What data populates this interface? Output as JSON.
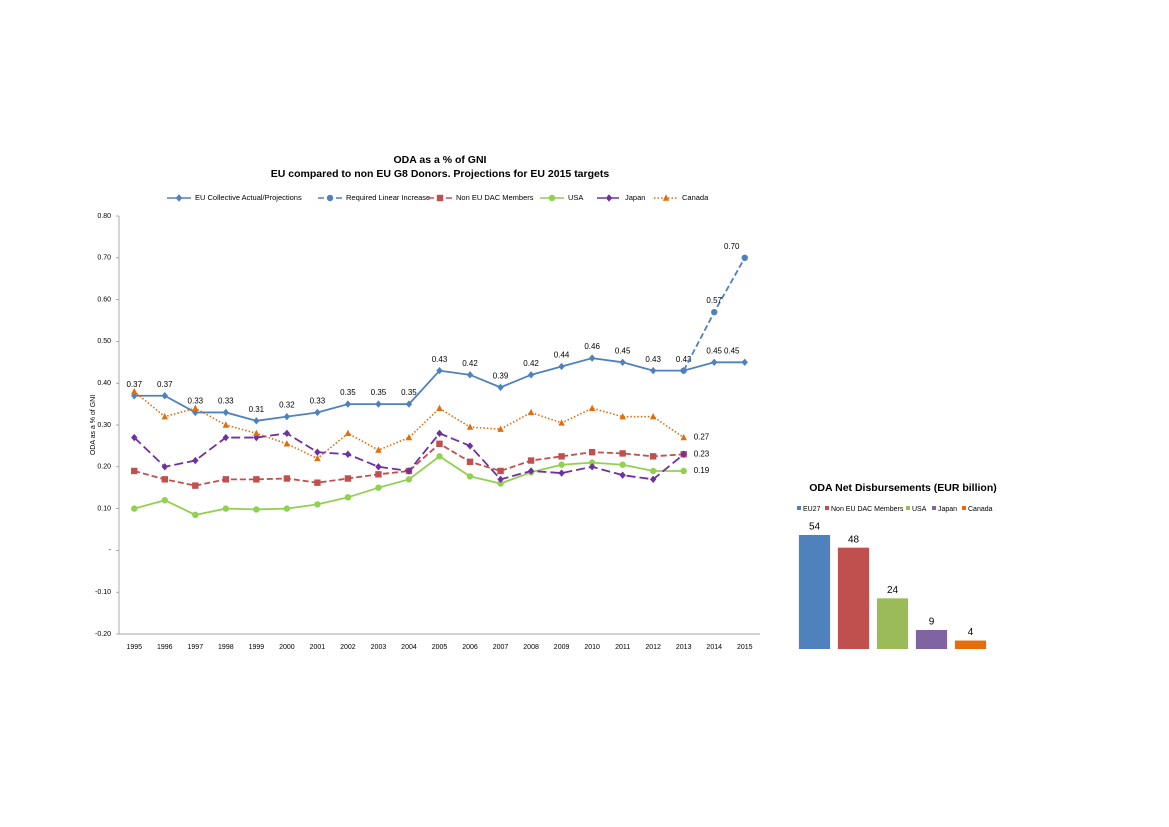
{
  "chart_data": [
    {
      "type": "line",
      "title": "ODA as a % of GNI",
      "subtitle": "EU compared to non EU G8 Donors.  Projections for EU 2015 targets",
      "y_label": "ODA as a % of GNI",
      "categories": [
        "1995",
        "1996",
        "1997",
        "1998",
        "1999",
        "2000",
        "2001",
        "2002",
        "2003",
        "2004",
        "2005",
        "2006",
        "2007",
        "2008",
        "2009",
        "2010",
        "2011",
        "2012",
        "2013",
        "2014",
        "2015"
      ],
      "ylim": [
        -0.2,
        0.8
      ],
      "yticks": [
        {
          "value": -0.2,
          "label": "-0.20"
        },
        {
          "value": -0.1,
          "label": "-0.10"
        },
        {
          "value": 0,
          "label": "-"
        },
        {
          "value": 0.1,
          "label": "0.10"
        },
        {
          "value": 0.2,
          "label": "0.20"
        },
        {
          "value": 0.3,
          "label": "0.30"
        },
        {
          "value": 0.4,
          "label": "0.40"
        },
        {
          "value": 0.5,
          "label": "0.50"
        },
        {
          "value": 0.6,
          "label": "0.60"
        },
        {
          "value": 0.7,
          "label": "0.70"
        },
        {
          "value": 0.8,
          "label": "0.80"
        }
      ],
      "legend": "top",
      "series": [
        {
          "name": "EU Collective Actual/Projections",
          "color": "#4f81bd",
          "marker": "diamond",
          "dash": "solid",
          "values": [
            0.37,
            0.37,
            0.33,
            0.33,
            0.31,
            0.32,
            0.33,
            0.35,
            0.35,
            0.35,
            0.43,
            0.42,
            0.39,
            0.42,
            0.44,
            0.46,
            0.45,
            0.43,
            0.43,
            0.45,
            0.45
          ],
          "value_labels": [
            "0.37",
            "0.37",
            "0.33",
            "0.33",
            "0.31",
            "0.32",
            "0.33",
            "0.35",
            "0.35",
            "0.35",
            "0.43",
            "0.42",
            "0.39",
            "0.42",
            "0.44",
            "0.46",
            "0.45",
            "0.43",
            "0.43",
            "0.45",
            "0.45"
          ]
        },
        {
          "name": "Required Linear Increase",
          "color": "#4f81bd",
          "marker": "circle",
          "dash": "dashed",
          "values": [
            null,
            null,
            null,
            null,
            null,
            null,
            null,
            null,
            null,
            null,
            null,
            null,
            null,
            null,
            null,
            null,
            null,
            null,
            0.43,
            0.57,
            0.7
          ],
          "value_labels": [
            null,
            null,
            null,
            null,
            null,
            null,
            null,
            null,
            null,
            null,
            null,
            null,
            null,
            null,
            null,
            null,
            null,
            null,
            null,
            "0.57",
            "0.70"
          ]
        },
        {
          "name": "Non EU DAC Members",
          "color": "#c0504d",
          "marker": "square",
          "dash": "dashed",
          "values": [
            0.19,
            0.17,
            0.155,
            0.17,
            0.17,
            0.172,
            0.162,
            0.172,
            0.182,
            0.19,
            0.255,
            0.212,
            0.19,
            0.215,
            0.225,
            0.235,
            0.232,
            0.225,
            0.23,
            null,
            null
          ],
          "value_labels": [
            null,
            null,
            null,
            null,
            null,
            null,
            null,
            null,
            null,
            null,
            null,
            null,
            null,
            null,
            null,
            null,
            null,
            null,
            "0.23",
            null,
            null
          ]
        },
        {
          "name": "USA",
          "color": "#92d050",
          "marker": "circle",
          "dash": "solid",
          "values": [
            0.1,
            0.12,
            0.085,
            0.1,
            0.098,
            0.1,
            0.11,
            0.127,
            0.15,
            0.17,
            0.225,
            0.177,
            0.16,
            0.187,
            0.205,
            0.21,
            0.205,
            0.19,
            0.19,
            null,
            null
          ],
          "value_labels": [
            null,
            null,
            null,
            null,
            null,
            null,
            null,
            null,
            null,
            null,
            null,
            null,
            null,
            null,
            null,
            null,
            null,
            null,
            "0.19",
            null,
            null
          ]
        },
        {
          "name": "Japan",
          "color": "#7030a0",
          "marker": "diamond",
          "dash": "longdash",
          "values": [
            0.27,
            0.2,
            0.215,
            0.27,
            0.27,
            0.28,
            0.235,
            0.23,
            0.2,
            0.19,
            0.28,
            0.25,
            0.17,
            0.19,
            0.185,
            0.2,
            0.18,
            0.17,
            0.23,
            null,
            null
          ]
        },
        {
          "name": "Canada",
          "color": "#e46c0a",
          "marker": "triangle",
          "dash": "dotted",
          "values": [
            0.38,
            0.32,
            0.34,
            0.3,
            0.28,
            0.255,
            0.22,
            0.28,
            0.24,
            0.27,
            0.34,
            0.295,
            0.29,
            0.33,
            0.305,
            0.34,
            0.32,
            0.32,
            0.27,
            null,
            null
          ],
          "value_labels": [
            null,
            null,
            null,
            null,
            null,
            null,
            null,
            null,
            null,
            null,
            null,
            null,
            null,
            null,
            null,
            null,
            null,
            null,
            "0.27",
            null,
            null
          ]
        }
      ]
    },
    {
      "type": "bar",
      "title": "ODA Net Disbursements (EUR billion)",
      "categories": [
        "EU27",
        "Non EU DAC Members",
        "USA",
        "Japan",
        "Canada"
      ],
      "values": [
        54,
        48,
        24,
        9,
        4
      ],
      "colors": [
        "#4f81bd",
        "#c0504d",
        "#9bbb59",
        "#8064a2",
        "#e46c0a"
      ],
      "ylim": [
        0,
        54
      ],
      "legend": "top"
    }
  ]
}
